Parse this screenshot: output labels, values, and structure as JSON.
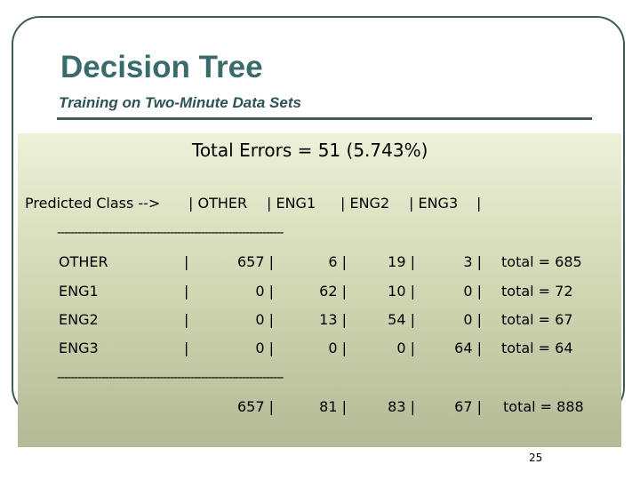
{
  "slide": {
    "title": "Decision Tree",
    "subtitle": "Training on Two-Minute Data Sets",
    "page_number": "25"
  },
  "summary": "Total Errors = 51 (5.743%)",
  "matrix": {
    "header": [
      "Predicted Class -->",
      "| OTHER",
      "| ENG1",
      "| ENG2",
      "| ENG3",
      "|"
    ],
    "separator": "------------------------------------------------------------------",
    "rows": [
      [
        "OTHER",
        "|",
        "657 |",
        "6 |",
        "19 |",
        "3 |",
        "total = 685"
      ],
      [
        "ENG1",
        "|",
        "0 |",
        "62 |",
        "10 |",
        "0 |",
        "total = 72"
      ],
      [
        "ENG2",
        "|",
        "0 |",
        "13 |",
        "54 |",
        "0 |",
        "total = 67"
      ],
      [
        "ENG3",
        "|",
        "0 |",
        "0 |",
        "0 |",
        "64 |",
        "total = 64"
      ]
    ],
    "totals": [
      "657 |",
      "81 |",
      "83 |",
      "67 |",
      "total = 888"
    ]
  },
  "colors": {
    "title": "#3a6b6b",
    "frame": "#3f5a5a",
    "panel_top": "#eef1d8",
    "panel_bottom": "#b4ba95"
  }
}
